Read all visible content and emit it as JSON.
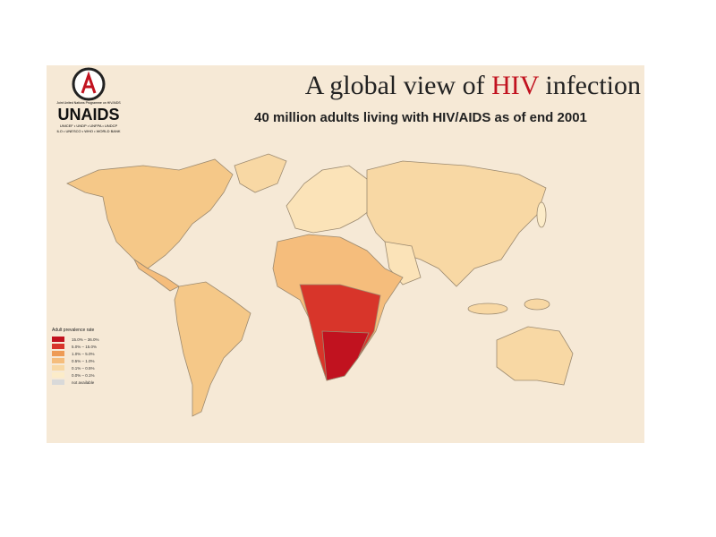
{
  "header": {
    "title_parts": [
      "A global view of ",
      "HIV",
      " infection"
    ],
    "subtitle": "40 million adults living with HIV/AIDS as of end 2001"
  },
  "logo": {
    "org_line": "Joint United Nations Programme on HIV/AIDS",
    "name": "UNAIDS",
    "sponsors": [
      "UNICEF • UNDP • UNFPA • UNDCP",
      "ILO • UNESCO • WHO • WORLD BANK"
    ]
  },
  "legend": {
    "title": "Adult prevalence rate",
    "items": [
      {
        "label": "15.0% – 36.0%",
        "color": "#c1121f"
      },
      {
        "label": "5.0% – 15.0%",
        "color": "#d8352a"
      },
      {
        "label": "1.0% – 5.0%",
        "color": "#ee9b55"
      },
      {
        "label": "0.5% – 1.0%",
        "color": "#f5bd7c"
      },
      {
        "label": "0.1% – 0.5%",
        "color": "#f8d8a4"
      },
      {
        "label": "0.0% – 0.1%",
        "color": "#fcecc9"
      },
      {
        "label": "not available",
        "color": "#d9d9d9"
      }
    ]
  }
}
